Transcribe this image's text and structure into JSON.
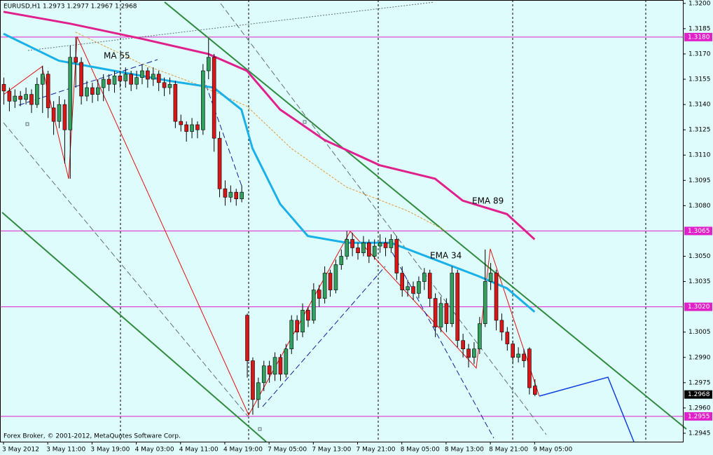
{
  "chart_data": {
    "type": "candlestick",
    "header": "EURUSD,H1  1.2973 1.2977 1.2967 1.2968",
    "footer": "Forex Broker, © 2001-2012, MetaQuotes Software Corp.",
    "xlim": [
      -0.633,
      122.8
    ],
    "ylim": [
      1.294,
      1.3202
    ],
    "bull_color": "#34a060",
    "bear_color": "#d81818",
    "xticks": [
      {
        "value": 0,
        "label": "3 May 2012"
      },
      {
        "value": 8,
        "label": "3 May 11:00"
      },
      {
        "value": 16,
        "label": "3 May 19:00"
      },
      {
        "value": 24,
        "label": "4 May 03:00"
      },
      {
        "value": 32,
        "label": "4 May 11:00"
      },
      {
        "value": 40,
        "label": "4 May 19:00"
      },
      {
        "value": 48,
        "label": "7 May 05:00"
      },
      {
        "value": 56,
        "label": "7 May 13:00"
      },
      {
        "value": 64,
        "label": "7 May 21:00"
      },
      {
        "value": 72,
        "label": "8 May 05:00"
      },
      {
        "value": 80,
        "label": "8 May 13:00"
      },
      {
        "value": 88,
        "label": "8 May 21:00"
      },
      {
        "value": 96,
        "label": "9 May 05:00"
      }
    ],
    "yticks": [
      {
        "value": 1.32,
        "label": "1.3200"
      },
      {
        "value": 1.3185,
        "label": "1.3185"
      },
      {
        "value": 1.317,
        "label": "1.3170"
      },
      {
        "value": 1.3155,
        "label": "1.3155"
      },
      {
        "value": 1.314,
        "label": "1.3140"
      },
      {
        "value": 1.3125,
        "label": "1.3125"
      },
      {
        "value": 1.311,
        "label": "1.3110"
      },
      {
        "value": 1.3095,
        "label": "1.3095"
      },
      {
        "value": 1.308,
        "label": "1.3080"
      },
      {
        "value": 1.305,
        "label": "1.3050"
      },
      {
        "value": 1.3035,
        "label": "1.3035"
      },
      {
        "value": 1.3005,
        "label": "1.3005"
      },
      {
        "value": 1.299,
        "label": "1.2990"
      },
      {
        "value": 1.2975,
        "label": "1.2975"
      },
      {
        "value": 1.296,
        "label": "1.2960"
      },
      {
        "value": 1.2945,
        "label": "1.2945"
      }
    ],
    "levels": [
      {
        "value": 1.318,
        "label": "1.3180"
      },
      {
        "value": 1.3065,
        "label": "1.3065"
      },
      {
        "value": 1.302,
        "label": "1.3020"
      },
      {
        "value": 1.2955,
        "label": "1.2955"
      }
    ],
    "level_color": "#e020c8",
    "price_tag": {
      "value": 1.2968,
      "label": "1.2968"
    },
    "series": [
      {
        "name": "MA 55",
        "color": "#e09a40",
        "dash": true,
        "x": [
          13,
          25,
          35,
          44,
          52,
          62,
          73,
          80
        ],
        "values": [
          1.3183,
          1.3164,
          1.3152,
          1.3139,
          1.3114,
          1.3091,
          1.3077,
          1.3065
        ]
      },
      {
        "name": "EMA 34",
        "color": "#1ab0e8",
        "dash": false,
        "x": [
          0,
          10,
          20,
          30,
          38,
          43,
          45,
          50,
          55,
          62,
          70,
          78,
          86,
          91,
          96
        ],
        "values": [
          1.3182,
          1.3166,
          1.316,
          1.3154,
          1.315,
          1.3137,
          1.3114,
          1.3081,
          1.3062,
          1.3058,
          1.3058,
          1.3048,
          1.3038,
          1.3031,
          1.3017
        ]
      },
      {
        "name": "EMA 89",
        "color": "#e0208c",
        "dash": false,
        "x": [
          0,
          12,
          25,
          37,
          44,
          50,
          58,
          68,
          78,
          83,
          91,
          96
        ],
        "values": [
          1.3195,
          1.3188,
          1.3179,
          1.317,
          1.316,
          1.3137,
          1.3119,
          1.3104,
          1.3096,
          1.3083,
          1.3075,
          1.306
        ]
      }
    ],
    "candles": [
      [
        1.3152,
        1.3156,
        1.314,
        1.3148
      ],
      [
        1.3148,
        1.315,
        1.3136,
        1.3142
      ],
      [
        1.3142,
        1.3149,
        1.3138,
        1.3145
      ],
      [
        1.3145,
        1.3148,
        1.3139,
        1.3143
      ],
      [
        1.3143,
        1.315,
        1.314,
        1.3146
      ],
      [
        1.3146,
        1.3149,
        1.3135,
        1.314
      ],
      [
        1.314,
        1.3156,
        1.3138,
        1.3152
      ],
      [
        1.3152,
        1.3163,
        1.3135,
        1.3158
      ],
      [
        1.3158,
        1.316,
        1.3132,
        1.3138
      ],
      [
        1.3138,
        1.3142,
        1.3122,
        1.313
      ],
      [
        1.313,
        1.3145,
        1.3126,
        1.314
      ],
      [
        1.314,
        1.3143,
        1.3105,
        1.3125
      ],
      [
        1.3125,
        1.3175,
        1.3096,
        1.3168
      ],
      [
        1.3168,
        1.318,
        1.315,
        1.3165
      ],
      [
        1.3165,
        1.3168,
        1.314,
        1.3145
      ],
      [
        1.3145,
        1.3154,
        1.3142,
        1.315
      ],
      [
        1.315,
        1.3153,
        1.3141,
        1.3146
      ],
      [
        1.3146,
        1.3155,
        1.3142,
        1.315
      ],
      [
        1.315,
        1.3158,
        1.3142,
        1.3155
      ],
      [
        1.3155,
        1.3158,
        1.3148,
        1.3152
      ],
      [
        1.3152,
        1.316,
        1.3147,
        1.3157
      ],
      [
        1.3157,
        1.316,
        1.315,
        1.3154
      ],
      [
        1.3154,
        1.3162,
        1.315,
        1.3158
      ],
      [
        1.3158,
        1.316,
        1.3148,
        1.3152
      ],
      [
        1.3152,
        1.316,
        1.3149,
        1.3156
      ],
      [
        1.3156,
        1.3164,
        1.3152,
        1.316
      ],
      [
        1.316,
        1.3162,
        1.315,
        1.3155
      ],
      [
        1.3155,
        1.3162,
        1.3151,
        1.3158
      ],
      [
        1.3158,
        1.316,
        1.3148,
        1.3153
      ],
      [
        1.3153,
        1.3156,
        1.3145,
        1.315
      ],
      [
        1.315,
        1.3156,
        1.3146,
        1.3152
      ],
      [
        1.3152,
        1.3154,
        1.3126,
        1.313
      ],
      [
        1.313,
        1.3134,
        1.3124,
        1.3128
      ],
      [
        1.3128,
        1.313,
        1.3118,
        1.3124
      ],
      [
        1.3124,
        1.3132,
        1.312,
        1.3128
      ],
      [
        1.3128,
        1.313,
        1.312,
        1.3125
      ],
      [
        1.3125,
        1.3164,
        1.3122,
        1.316
      ],
      [
        1.316,
        1.3179,
        1.3155,
        1.3168
      ],
      [
        1.3168,
        1.317,
        1.3112,
        1.312
      ],
      [
        1.312,
        1.3124,
        1.3085,
        1.309
      ],
      [
        1.309,
        1.3095,
        1.308,
        1.3085
      ],
      [
        1.3085,
        1.3092,
        1.3082,
        1.3088
      ],
      [
        1.3088,
        1.309,
        1.308,
        1.3084
      ],
      [
        1.3084,
        1.3092,
        1.3082,
        1.3088
      ],
      [
        1.3015,
        1.3016,
        1.2978,
        1.2988
      ],
      [
        1.2988,
        1.299,
        1.2956,
        1.2965
      ],
      [
        1.2965,
        1.2978,
        1.296,
        1.2975
      ],
      [
        1.2975,
        1.2988,
        1.297,
        1.2985
      ],
      [
        1.2985,
        1.2988,
        1.2975,
        1.298
      ],
      [
        1.298,
        1.2993,
        1.2976,
        1.299
      ],
      [
        1.299,
        1.2992,
        1.2976,
        1.298
      ],
      [
        1.298,
        1.2998,
        1.2978,
        1.2995
      ],
      [
        1.2995,
        1.3015,
        1.2992,
        1.3012
      ],
      [
        1.3012,
        1.3015,
        1.3,
        1.3005
      ],
      [
        1.3005,
        1.3022,
        1.3002,
        1.3018
      ],
      [
        1.3018,
        1.302,
        1.3008,
        1.3012
      ],
      [
        1.3012,
        1.3034,
        1.301,
        1.303
      ],
      [
        1.303,
        1.3033,
        1.302,
        1.3025
      ],
      [
        1.3025,
        1.3044,
        1.3022,
        1.304
      ],
      [
        1.304,
        1.3042,
        1.3026,
        1.303
      ],
      [
        1.303,
        1.3048,
        1.3028,
        1.3045
      ],
      [
        1.3045,
        1.3054,
        1.3042,
        1.305
      ],
      [
        1.305,
        1.3065,
        1.3048,
        1.306
      ],
      [
        1.306,
        1.3064,
        1.305,
        1.3055
      ],
      [
        1.3055,
        1.3058,
        1.3048,
        1.3052
      ],
      [
        1.3052,
        1.3062,
        1.305,
        1.3058
      ],
      [
        1.3058,
        1.306,
        1.3046,
        1.305
      ],
      [
        1.305,
        1.306,
        1.3048,
        1.3056
      ],
      [
        1.3056,
        1.3063,
        1.3052,
        1.3058
      ],
      [
        1.3058,
        1.3061,
        1.305,
        1.3055
      ],
      [
        1.3055,
        1.3063,
        1.3052,
        1.306
      ],
      [
        1.306,
        1.3062,
        1.3036,
        1.304
      ],
      [
        1.304,
        1.3044,
        1.3026,
        1.303
      ],
      [
        1.303,
        1.3036,
        1.3026,
        1.3032
      ],
      [
        1.3032,
        1.3035,
        1.3024,
        1.3028
      ],
      [
        1.3028,
        1.3038,
        1.3025,
        1.3035
      ],
      [
        1.3035,
        1.3043,
        1.303,
        1.304
      ],
      [
        1.304,
        1.3042,
        1.302,
        1.3025
      ],
      [
        1.3025,
        1.3028,
        1.3002,
        1.3008
      ],
      [
        1.3008,
        1.3026,
        1.3005,
        1.3022
      ],
      [
        1.3022,
        1.3025,
        1.3005,
        1.301
      ],
      [
        1.301,
        1.3044,
        1.3008,
        1.304
      ],
      [
        1.304,
        1.3042,
        1.2996,
        1.3
      ],
      [
        1.3,
        1.3004,
        1.299,
        1.2995
      ],
      [
        1.2995,
        1.2998,
        1.2984,
        1.299
      ],
      [
        1.299,
        1.2999,
        1.2986,
        1.2995
      ],
      [
        1.2995,
        1.3014,
        1.2992,
        1.301
      ],
      [
        1.301,
        1.3054,
        1.3008,
        1.3035
      ],
      [
        1.3035,
        1.3046,
        1.303,
        1.304
      ],
      [
        1.304,
        1.3042,
        1.3006,
        1.3012
      ],
      [
        1.3012,
        1.3016,
        1.3,
        1.3005
      ],
      [
        1.3005,
        1.3008,
        1.2994,
        1.2998
      ],
      [
        1.2998,
        1.3,
        1.2986,
        1.299
      ],
      [
        1.299,
        1.2996,
        1.2987,
        1.2992
      ],
      [
        1.2992,
        1.2995,
        1.2984,
        1.2988
      ],
      [
        1.2995,
        1.2996,
        1.2968,
        1.2972
      ],
      [
        1.2973,
        1.2977,
        1.2967,
        1.2968
      ]
    ]
  }
}
